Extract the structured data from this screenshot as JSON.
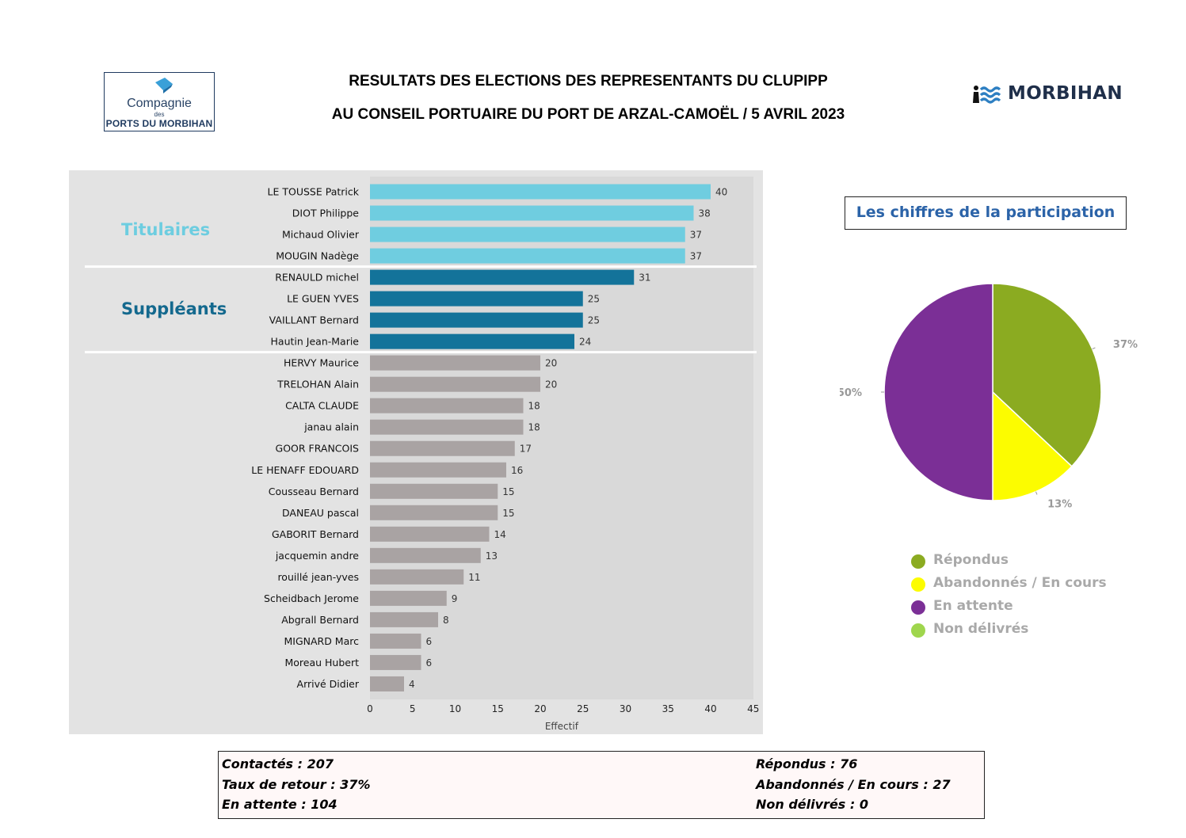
{
  "header": {
    "title_line1": "RESULTATS DES ELECTIONS DES REPRESENTANTS DU CLUPIPP",
    "title_line2": "AU CONSEIL PORTUAIRE DU PORT DE ARZAL-CAMOËL / 5 AVRIL 2023",
    "logo_left": {
      "line1": "Compagnie",
      "line2": "des",
      "line3": "PORTS DU MORBIHAN"
    },
    "logo_right": "MORBIHAN"
  },
  "groups": {
    "titulaires": "Titulaires",
    "suppleants": "Suppléants"
  },
  "participation_title": "Les chiffres de la participation",
  "colors": {
    "titulaires": "#6fcde0",
    "suppleants": "#13739a",
    "others": "#a9a3a3",
    "repondus": "#8bab21",
    "abandonnes": "#fcfc00",
    "attente": "#7b2f96",
    "non_delivres": "#9fd64d"
  },
  "chart_data": [
    {
      "type": "bar",
      "orientation": "horizontal",
      "categories": [
        "LE TOUSSE Patrick",
        "DIOT Philippe",
        "Michaud Olivier",
        "MOUGIN Nadège",
        "RENAULD michel",
        "LE GUEN YVES",
        "VAILLANT Bernard",
        "Hautin Jean-Marie",
        "HERVY Maurice",
        "TRELOHAN Alain",
        "CALTA CLAUDE",
        "janau alain",
        "GOOR FRANCOIS",
        "LE HENAFF EDOUARD",
        "Cousseau Bernard",
        "DANEAU pascal",
        "GABORIT Bernard",
        "jacquemin andre",
        "rouillé jean-yves",
        "Scheidbach Jerome",
        "Abgrall Bernard",
        "MIGNARD Marc",
        "Moreau Hubert",
        "Arrivé Didier"
      ],
      "values": [
        40,
        38,
        37,
        37,
        31,
        25,
        25,
        24,
        20,
        20,
        18,
        18,
        17,
        16,
        15,
        15,
        14,
        13,
        11,
        9,
        8,
        6,
        6,
        4
      ],
      "groups": [
        "titulaires",
        "titulaires",
        "titulaires",
        "titulaires",
        "suppleants",
        "suppleants",
        "suppleants",
        "suppleants",
        "others",
        "others",
        "others",
        "others",
        "others",
        "others",
        "others",
        "others",
        "others",
        "others",
        "others",
        "others",
        "others",
        "others",
        "others",
        "others"
      ],
      "xlabel": "Effectif",
      "xlim": [
        0,
        45
      ],
      "xticks": [
        0,
        5,
        10,
        15,
        20,
        25,
        30,
        35,
        40,
        45
      ],
      "grid": false
    },
    {
      "type": "pie",
      "slices": [
        {
          "label": "Répondus",
          "value": 37,
          "display": "37%",
          "color": "#8bab21"
        },
        {
          "label": "Abandonnés / En cours",
          "value": 13,
          "display": "13%",
          "color": "#fcfc00"
        },
        {
          "label": "En attente",
          "value": 50,
          "display": "50%",
          "color": "#7b2f96"
        },
        {
          "label": "Non délivrés",
          "value": 0,
          "display": "",
          "color": "#9fd64d"
        }
      ],
      "legend_position": "bottom"
    }
  ],
  "stats": {
    "contactes": "Contactés : 207",
    "taux": "Taux de retour : 37%",
    "attente": "En attente : 104",
    "repondus": "Répondus : 76",
    "abandonnes": "Abandonnés / En cours : 27",
    "non_delivres": "Non délivrés : 0"
  }
}
